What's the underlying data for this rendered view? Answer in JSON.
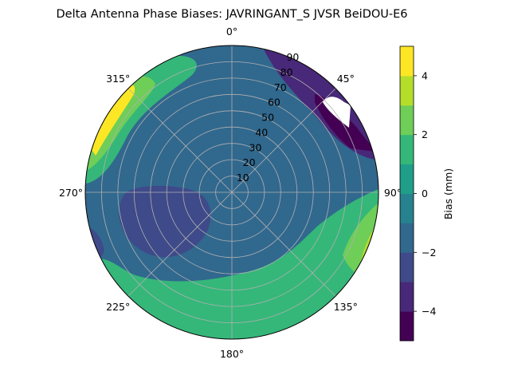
{
  "chart_data": {
    "type": "polar contour",
    "title": "Delta Antenna Phase Biases: JAVRINGANT_S    JVSR BeiDOU-E6",
    "angular_tick_labels": [
      "0°",
      "45°",
      "90°",
      "135°",
      "180°",
      "225°",
      "270°",
      "315°"
    ],
    "radial_tick_labels": [
      "10",
      "20",
      "30",
      "40",
      "50",
      "60",
      "70",
      "80",
      "90"
    ],
    "radial_range": [
      0,
      90
    ],
    "grid": true,
    "colorbar": {
      "label": "Bias (mm)",
      "tick_labels": [
        "−4",
        "−2",
        "0",
        "2",
        "4"
      ],
      "range": [
        -5,
        5
      ],
      "levels": [
        -5,
        -4,
        -3,
        -2,
        -1,
        0,
        1,
        2,
        3,
        4,
        5
      ],
      "colors": [
        "#440154",
        "#482878",
        "#3e4a89",
        "#31688e",
        "#26828e",
        "#1f9e89",
        "#35b779",
        "#6ece58",
        "#b5de2b",
        "#fde725"
      ],
      "placement": "right"
    },
    "regions": [
      {
        "name": "base",
        "value": -1.5,
        "color": "#31688e"
      },
      {
        "name": "north-east low",
        "value": -3.5,
        "color": "#482878"
      },
      {
        "name": "north-east minimum",
        "value": -4.5,
        "color": "#440154"
      },
      {
        "name": "north-east gap",
        "value": null,
        "color": "#ffffff"
      },
      {
        "name": "north-west ridge",
        "value": 1.5,
        "color": "#35b779"
      },
      {
        "name": "north-west high",
        "value": 2.5,
        "color": "#6ece58"
      },
      {
        "name": "north-west peak",
        "value": 4.5,
        "color": "#fde725"
      },
      {
        "name": "south band",
        "value": 1.5,
        "color": "#35b779"
      },
      {
        "name": "south-east high",
        "value": 2.5,
        "color": "#6ece58"
      },
      {
        "name": "south-east peak",
        "value": 3.5,
        "color": "#b5de2b"
      },
      {
        "name": "west low",
        "value": -2.5,
        "color": "#3e4a89"
      },
      {
        "name": "centre low",
        "value": -2.5,
        "color": "#3e4a89"
      }
    ]
  }
}
